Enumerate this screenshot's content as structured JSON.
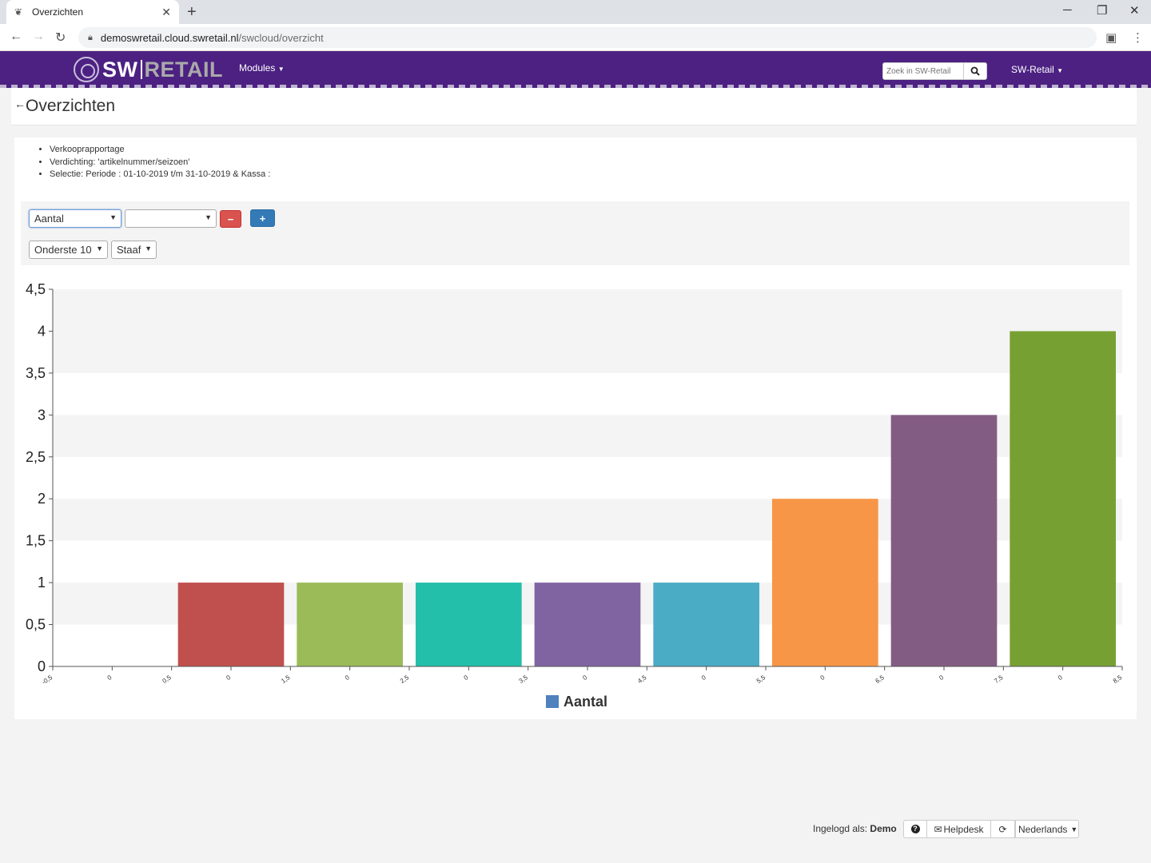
{
  "browser": {
    "tab_title": "Overzichten",
    "url_host": "demoswretail.cloud.swretail.nl",
    "url_path": "/swcloud/overzicht"
  },
  "app": {
    "logo_sw": "SW",
    "logo_retail": "RETAIL",
    "modules_label": "Modules",
    "search_placeholder": "Zoek in SW-Retail",
    "user_menu": "SW-Retail",
    "brand_color": "#4c2182"
  },
  "page": {
    "title": "Overzichten"
  },
  "info": {
    "items": [
      "Verkooprapportage",
      "Verdichting: 'artikelnummer/seizoen'",
      "Selectie: Periode : 01-10-2019 t/m 31-10-2019 & Kassa :"
    ]
  },
  "controls": {
    "measure_select": "Aantal",
    "second_select": "",
    "remove_button": "−",
    "add_button": "+",
    "top_select": "Onderste 10",
    "type_select": "Staaf"
  },
  "chart_data": {
    "type": "bar",
    "categories": [
      "0",
      "0",
      "0",
      "0",
      "0",
      "0",
      "0",
      "0",
      "0"
    ],
    "x_ticks": [
      "-0,5",
      "0",
      "0,5",
      "0",
      "1,5",
      "0",
      "2,5",
      "0",
      "3,5",
      "0",
      "4,5",
      "0",
      "5,5",
      "0",
      "6,5",
      "0",
      "7,5",
      "0",
      "8,5"
    ],
    "series": [
      {
        "name": "Aantal",
        "values": [
          0,
          1,
          1,
          1,
          1,
          1,
          2,
          3,
          4
        ],
        "colors": [
          "#4f81bd",
          "#c0504d",
          "#9bbb59",
          "#23bfaa",
          "#8064a2",
          "#4bacc6",
          "#f79646",
          "#835c83",
          "#77a033"
        ]
      }
    ],
    "y_ticks": [
      "0",
      "0,5",
      "1",
      "1,5",
      "2",
      "2,5",
      "3",
      "3,5",
      "4",
      "4,5"
    ],
    "ylim": [
      0,
      4.5
    ],
    "legend_position": "bottom",
    "legend_color": "#4f81bd",
    "grid": true
  },
  "footer": {
    "logged_in_label": "Ingelogd als:",
    "user": "Demo",
    "help_icon": "?",
    "helpdesk": "Helpdesk",
    "language": "Nederlands"
  }
}
